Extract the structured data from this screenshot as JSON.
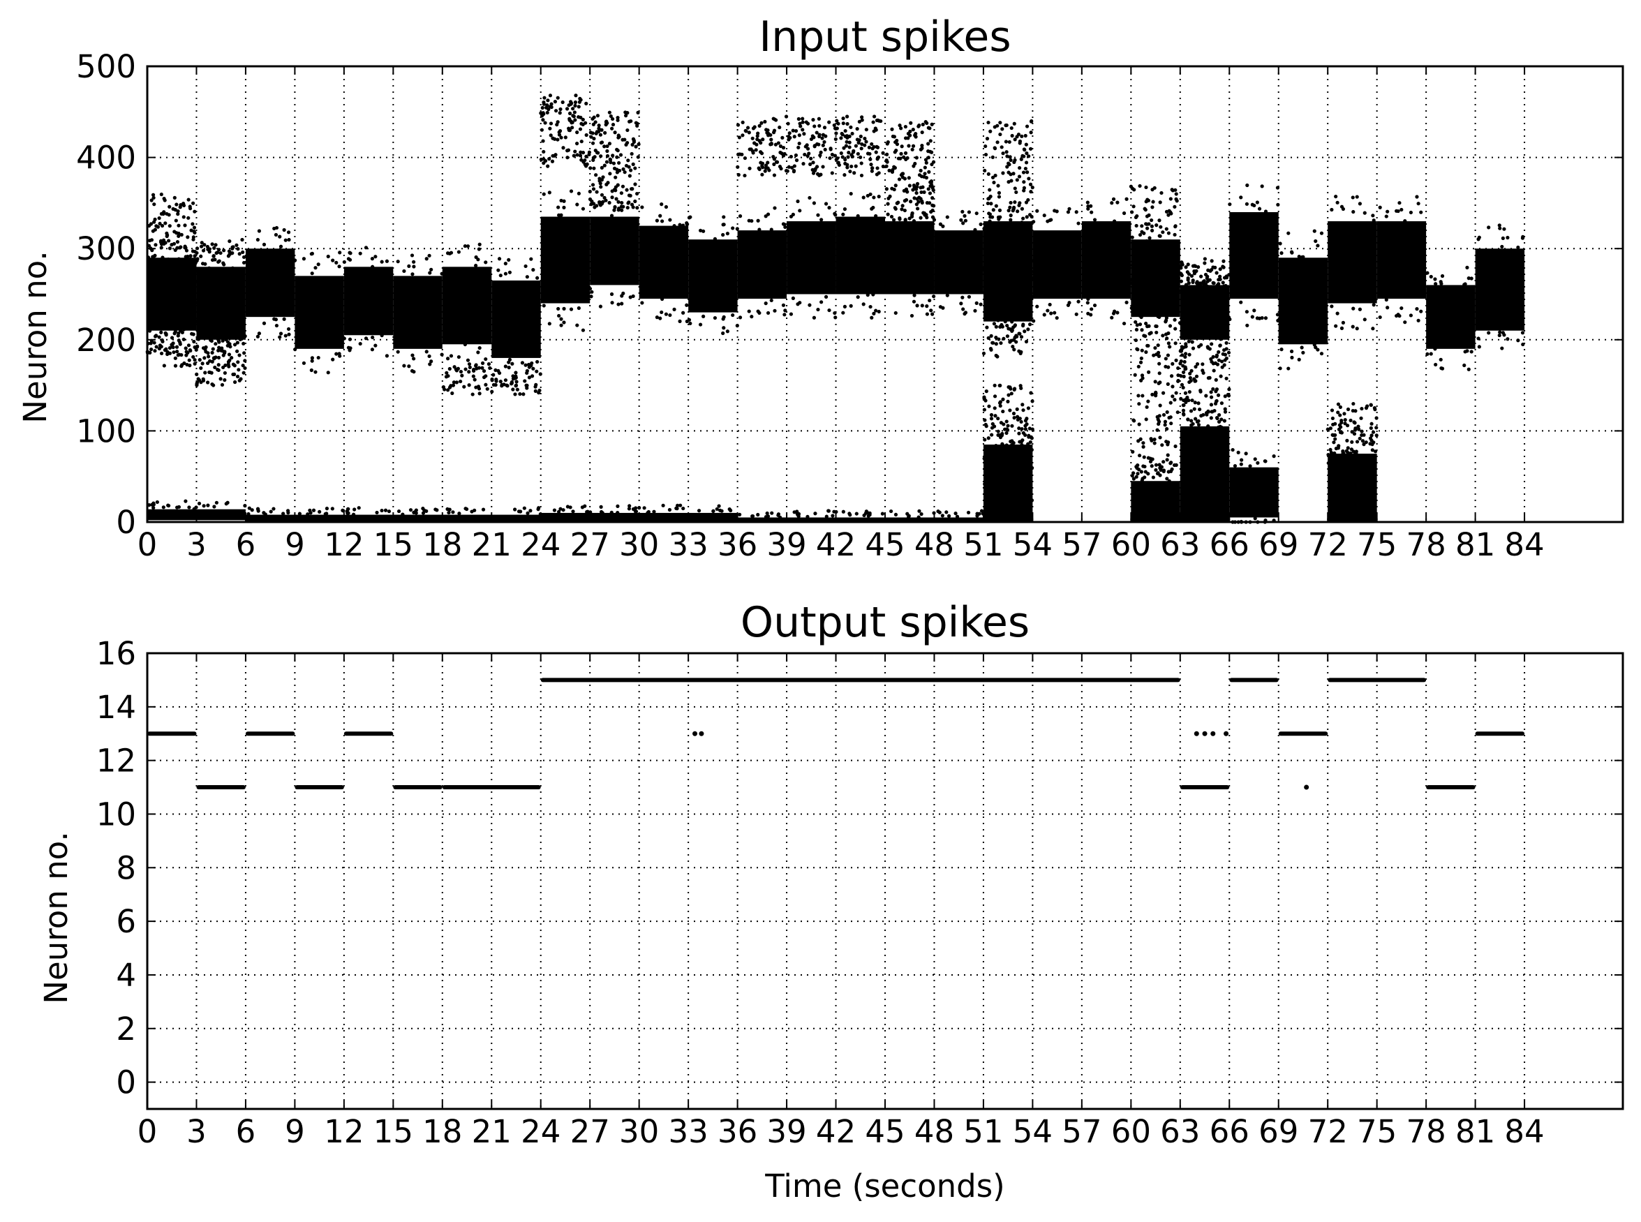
{
  "chart_data": [
    {
      "type": "scatter",
      "title": "Input spikes",
      "xlabel": "",
      "ylabel": "Neuron no.",
      "xlim": [
        0,
        90
      ],
      "ylim": [
        0,
        500
      ],
      "grid": true,
      "x_ticks": [
        "0",
        "3",
        "6",
        "9",
        "12",
        "15",
        "18",
        "21",
        "24",
        "27",
        "30",
        "33",
        "36",
        "39",
        "42",
        "45",
        "48",
        "51",
        "54",
        "57",
        "60",
        "63",
        "66",
        "69",
        "72",
        "75",
        "78",
        "81",
        "84"
      ],
      "y_ticks": [
        "0",
        "100",
        "200",
        "300",
        "400",
        "500"
      ],
      "colors": {
        "marker": "#000000",
        "grid": "#000000",
        "background": "#ffffff"
      },
      "dense_bands": [
        {
          "x0": 0,
          "x1": 3,
          "y0": 210,
          "y1": 290
        },
        {
          "x0": 3,
          "x1": 6,
          "y0": 200,
          "y1": 280
        },
        {
          "x0": 6,
          "x1": 9,
          "y0": 225,
          "y1": 300
        },
        {
          "x0": 9,
          "x1": 12,
          "y0": 190,
          "y1": 270
        },
        {
          "x0": 12,
          "x1": 15,
          "y0": 205,
          "y1": 280
        },
        {
          "x0": 15,
          "x1": 18,
          "y0": 190,
          "y1": 270
        },
        {
          "x0": 18,
          "x1": 21,
          "y0": 195,
          "y1": 280
        },
        {
          "x0": 21,
          "x1": 24,
          "y0": 180,
          "y1": 265
        },
        {
          "x0": 24,
          "x1": 27,
          "y0": 240,
          "y1": 335
        },
        {
          "x0": 27,
          "x1": 30,
          "y0": 260,
          "y1": 335
        },
        {
          "x0": 30,
          "x1": 33,
          "y0": 245,
          "y1": 325
        },
        {
          "x0": 33,
          "x1": 36,
          "y0": 230,
          "y1": 310
        },
        {
          "x0": 36,
          "x1": 39,
          "y0": 245,
          "y1": 320
        },
        {
          "x0": 39,
          "x1": 42,
          "y0": 250,
          "y1": 330
        },
        {
          "x0": 42,
          "x1": 45,
          "y0": 250,
          "y1": 335
        },
        {
          "x0": 45,
          "x1": 48,
          "y0": 250,
          "y1": 330
        },
        {
          "x0": 48,
          "x1": 51,
          "y0": 250,
          "y1": 320
        },
        {
          "x0": 51,
          "x1": 54,
          "y0": 220,
          "y1": 330
        },
        {
          "x0": 54,
          "x1": 57,
          "y0": 245,
          "y1": 320
        },
        {
          "x0": 57,
          "x1": 60,
          "y0": 245,
          "y1": 330
        },
        {
          "x0": 60,
          "x1": 63,
          "y0": 225,
          "y1": 310
        },
        {
          "x0": 63,
          "x1": 66,
          "y0": 200,
          "y1": 260
        },
        {
          "x0": 66,
          "x1": 69,
          "y0": 245,
          "y1": 340
        },
        {
          "x0": 69,
          "x1": 72,
          "y0": 195,
          "y1": 290
        },
        {
          "x0": 72,
          "x1": 75,
          "y0": 240,
          "y1": 330
        },
        {
          "x0": 75,
          "x1": 78,
          "y0": 245,
          "y1": 330
        },
        {
          "x0": 78,
          "x1": 81,
          "y0": 190,
          "y1": 260
        },
        {
          "x0": 81,
          "x1": 84,
          "y0": 210,
          "y1": 300
        },
        {
          "x0": 0,
          "x1": 6,
          "y0": 2,
          "y1": 14
        },
        {
          "x0": 6,
          "x1": 24,
          "y0": 1,
          "y1": 8
        },
        {
          "x0": 24,
          "x1": 36,
          "y0": 1,
          "y1": 10
        },
        {
          "x0": 36,
          "x1": 51,
          "y0": 0,
          "y1": 5
        },
        {
          "x0": 51,
          "x1": 54,
          "y0": 0,
          "y1": 85
        },
        {
          "x0": 60,
          "x1": 63,
          "y0": 0,
          "y1": 45
        },
        {
          "x0": 63,
          "x1": 66,
          "y0": 0,
          "y1": 105
        },
        {
          "x0": 66,
          "x1": 69,
          "y0": 5,
          "y1": 60
        },
        {
          "x0": 72,
          "x1": 75,
          "y0": 0,
          "y1": 75
        }
      ],
      "sparse_bands": [
        {
          "x0": 0,
          "x1": 3,
          "y0": 170,
          "y1": 360
        },
        {
          "x0": 3,
          "x1": 6,
          "y0": 150,
          "y1": 310
        },
        {
          "x0": 24,
          "x1": 27,
          "y0": 390,
          "y1": 470
        },
        {
          "x0": 27,
          "x1": 30,
          "y0": 340,
          "y1": 450
        },
        {
          "x0": 36,
          "x1": 45,
          "y0": 380,
          "y1": 445
        },
        {
          "x0": 45,
          "x1": 48,
          "y0": 330,
          "y1": 440
        },
        {
          "x0": 51,
          "x1": 54,
          "y0": 180,
          "y1": 440
        },
        {
          "x0": 51,
          "x1": 54,
          "y0": 0,
          "y1": 150
        },
        {
          "x0": 60,
          "x1": 63,
          "y0": 40,
          "y1": 370
        },
        {
          "x0": 63,
          "x1": 66,
          "y0": 100,
          "y1": 290
        },
        {
          "x0": 72,
          "x1": 75,
          "y0": 60,
          "y1": 130
        },
        {
          "x0": 18,
          "x1": 24,
          "y0": 140,
          "y1": 175
        }
      ]
    },
    {
      "type": "scatter",
      "title": "Output spikes",
      "xlabel": "Time (seconds)",
      "ylabel": "Neuron no.",
      "xlim": [
        0,
        90
      ],
      "ylim": [
        -1,
        16
      ],
      "grid": true,
      "x_ticks": [
        "0",
        "3",
        "6",
        "9",
        "12",
        "15",
        "18",
        "21",
        "24",
        "27",
        "30",
        "33",
        "36",
        "39",
        "42",
        "45",
        "48",
        "51",
        "54",
        "57",
        "60",
        "63",
        "66",
        "69",
        "72",
        "75",
        "78",
        "81",
        "84"
      ],
      "y_ticks": [
        "0",
        "2",
        "4",
        "6",
        "8",
        "10",
        "12",
        "14",
        "16"
      ],
      "colors": {
        "marker": "#000000",
        "grid": "#000000",
        "background": "#ffffff"
      },
      "segments": [
        {
          "x0": 0,
          "x1": 3,
          "y": 13
        },
        {
          "x0": 3,
          "x1": 6,
          "y": 11
        },
        {
          "x0": 6,
          "x1": 9,
          "y": 13
        },
        {
          "x0": 9,
          "x1": 12,
          "y": 11
        },
        {
          "x0": 12,
          "x1": 15,
          "y": 13
        },
        {
          "x0": 15,
          "x1": 18,
          "y": 11
        },
        {
          "x0": 18,
          "x1": 24,
          "y": 11
        },
        {
          "x0": 24,
          "x1": 63,
          "y": 15
        },
        {
          "x0": 63,
          "x1": 66,
          "y": 11
        },
        {
          "x0": 66,
          "x1": 69,
          "y": 15
        },
        {
          "x0": 69,
          "x1": 72,
          "y": 13
        },
        {
          "x0": 72,
          "x1": 78,
          "y": 15
        },
        {
          "x0": 78,
          "x1": 81,
          "y": 11
        },
        {
          "x0": 81,
          "x1": 84,
          "y": 13
        }
      ],
      "points": [
        {
          "x": 33.4,
          "y": 13
        },
        {
          "x": 33.8,
          "y": 13
        },
        {
          "x": 64.0,
          "y": 13
        },
        {
          "x": 64.5,
          "y": 13
        },
        {
          "x": 65.0,
          "y": 13
        },
        {
          "x": 65.8,
          "y": 13
        },
        {
          "x": 70.7,
          "y": 11
        }
      ]
    }
  ]
}
